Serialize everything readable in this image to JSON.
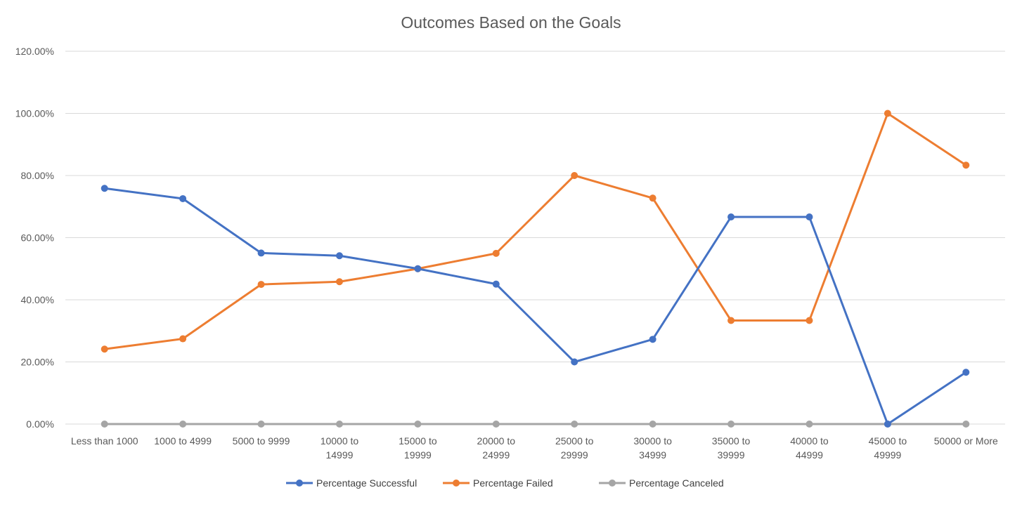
{
  "chart_data": {
    "type": "line",
    "title": "Outcomes Based on the Goals",
    "xlabel": "",
    "ylabel": "",
    "ylim": [
      0,
      1.2
    ],
    "ytick_step": 0.2,
    "grid": true,
    "legend_position": "bottom",
    "categories": [
      [
        "Less than 1000"
      ],
      [
        "1000 to 4999"
      ],
      [
        "5000 to 9999"
      ],
      [
        "10000 to",
        "14999"
      ],
      [
        "15000 to",
        "19999"
      ],
      [
        "20000 to",
        "24999"
      ],
      [
        "25000 to",
        "29999"
      ],
      [
        "30000 to",
        "34999"
      ],
      [
        "35000 to",
        "39999"
      ],
      [
        "40000 to",
        "44999"
      ],
      [
        "45000 to",
        "49999"
      ],
      [
        "50000 or More"
      ]
    ],
    "series": [
      {
        "name": "Percentage Successful",
        "color": "#4472c4",
        "values": [
          0.7588,
          0.7255,
          0.5505,
          0.5418,
          0.5,
          0.4505,
          0.2,
          0.2727,
          0.6667,
          0.6667,
          0.0,
          0.1667
        ]
      },
      {
        "name": "Percentage Failed",
        "color": "#ed7d31",
        "values": [
          0.2412,
          0.2745,
          0.4495,
          0.4582,
          0.5,
          0.5495,
          0.8,
          0.7273,
          0.3333,
          0.3333,
          1.0,
          0.8333
        ]
      },
      {
        "name": "Percentage Canceled",
        "color": "#a5a5a5",
        "values": [
          0,
          0,
          0,
          0,
          0,
          0,
          0,
          0,
          0,
          0,
          0,
          0
        ]
      }
    ]
  }
}
